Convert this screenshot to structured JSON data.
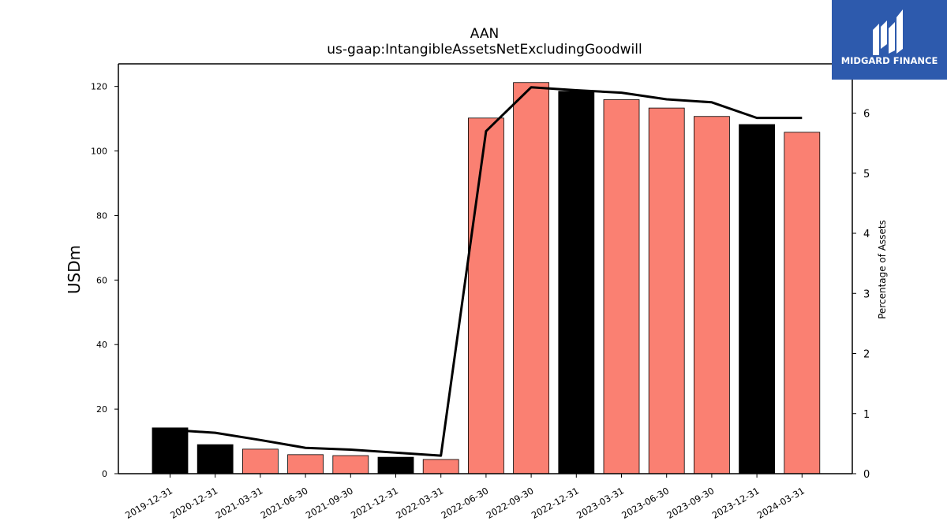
{
  "chart_data": {
    "type": "bar",
    "title": "AAN",
    "subtitle": "us-gaap:IntangibleAssetsNetExcludingGoodwill",
    "ylabel": "USDm",
    "y2label": "Percentage of Assets",
    "categories": [
      "2019-12-31",
      "2020-12-31",
      "2021-03-31",
      "2021-06-30",
      "2021-09-30",
      "2021-12-31",
      "2022-03-31",
      "2022-06-30",
      "2022-09-30",
      "2022-12-31",
      "2023-03-31",
      "2023-06-30",
      "2023-09-30",
      "2023-12-31",
      "2024-03-31"
    ],
    "series": [
      {
        "type": "bar",
        "axis": "left",
        "values": [
          14.2,
          9.0,
          7.6,
          5.9,
          5.6,
          5.1,
          4.4,
          110.2,
          121.2,
          118.5,
          115.9,
          113.3,
          110.7,
          108.2,
          105.8
        ],
        "colors": [
          "#000000",
          "#000000",
          "#fa8072",
          "#fa8072",
          "#fa8072",
          "#000000",
          "#fa8072",
          "#fa8072",
          "#fa8072",
          "#000000",
          "#fa8072",
          "#fa8072",
          "#fa8072",
          "#000000",
          "#fa8072"
        ]
      },
      {
        "type": "line",
        "axis": "right",
        "values": [
          0.73,
          0.68,
          0.56,
          0.43,
          0.4,
          0.35,
          0.3,
          5.7,
          6.43,
          6.38,
          6.34,
          6.23,
          6.18,
          5.92,
          5.92
        ],
        "color": "#000000"
      }
    ],
    "ylim": [
      0,
      127
    ],
    "yticks": [
      0,
      20,
      40,
      60,
      80,
      100,
      120
    ],
    "y2lim": [
      0,
      6.82
    ],
    "y2ticks": [
      0,
      1,
      2,
      3,
      4,
      5,
      6
    ],
    "grid": false
  },
  "logo": {
    "text": "MIDGARD FINANCE",
    "background": "#2d5aad"
  }
}
